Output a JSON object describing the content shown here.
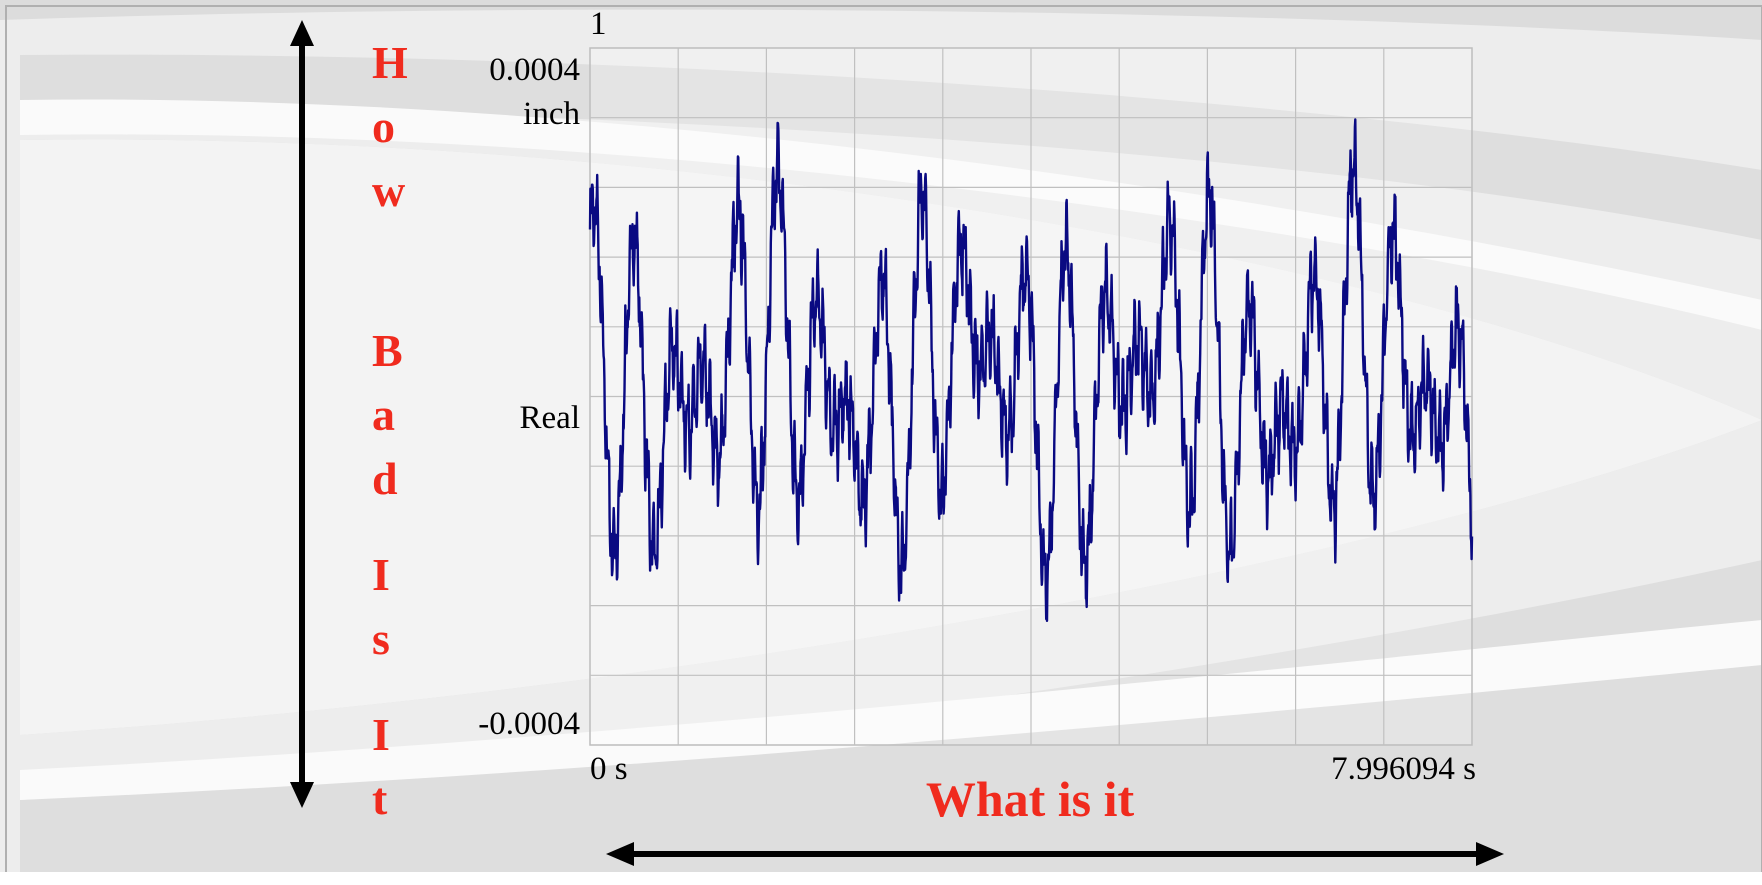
{
  "chart_data": {
    "type": "line",
    "title": "",
    "ylabel_text": "How Bad Is It",
    "ylabel_letters": [
      "H",
      "o",
      "w",
      "B",
      "a",
      "d",
      "I",
      "s",
      "I",
      "t"
    ],
    "xlabel": "What is it",
    "y_top_marker": "1",
    "y_unit": "inch",
    "y_mode": "Real",
    "ylim": [
      -0.0004,
      0.0004
    ],
    "ytick_top": "0.0004",
    "ytick_bottom": "-0.0004",
    "xlim": [
      0,
      7.996094
    ],
    "xtick_start": "0  s",
    "xtick_end": "7.996094  s",
    "grid": true,
    "series": [
      {
        "color": "#0a0a82",
        "components": [
          {
            "amplitude": 0.000105,
            "frequency_hz": 3.06,
            "phase": 0.4
          },
          {
            "amplitude": 9.5e-05,
            "frequency_hz": 2.31,
            "phase": 1.7
          },
          {
            "amplitude": 5e-05,
            "frequency_hz": 0.55,
            "phase": 2.4
          },
          {
            "amplitude": 3.5e-05,
            "frequency_hz": 19.5,
            "phase": 0.0
          },
          {
            "amplitude": 2e-05,
            "frequency_hz": 47.0,
            "phase": 1.1
          }
        ],
        "offset": 2e-05
      }
    ]
  },
  "colors": {
    "accent_red": "#f02b1e",
    "signal": "#0a0a82",
    "plot_grid": "#c0c0c0"
  }
}
